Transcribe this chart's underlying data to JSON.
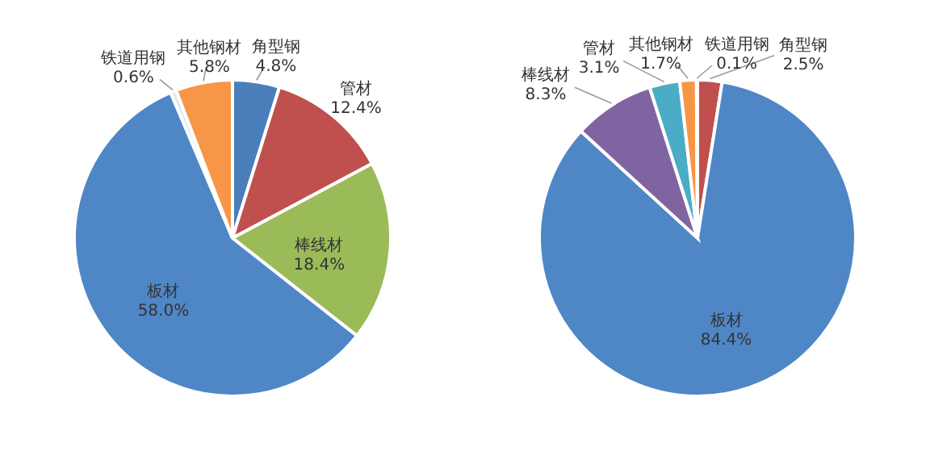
{
  "chart_data": [
    {
      "type": "pie",
      "categories": [
        "角型钢",
        "管材",
        "棒线材",
        "板材",
        "铁道用钢",
        "其他钢材"
      ],
      "values": [
        4.8,
        12.4,
        18.4,
        58.0,
        0.6,
        5.8
      ],
      "value_labels": [
        "4.8%",
        "12.4%",
        "18.4%",
        "58.0%",
        "0.6%",
        "5.8%"
      ],
      "colors": [
        "#4a7ebb",
        "#c0504d",
        "#9bbb59",
        "#4f86c6",
        "#dfe6f0",
        "#f79646"
      ],
      "legend": false
    },
    {
      "type": "pie",
      "categories": [
        "角型钢",
        "板材",
        "棒线材",
        "管材",
        "其他钢材",
        "铁道用钢"
      ],
      "values": [
        2.5,
        84.4,
        8.3,
        3.1,
        1.7,
        0.1
      ],
      "value_labels": [
        "2.5%",
        "84.4%",
        "8.3%",
        "3.1%",
        "1.7%",
        "0.1%"
      ],
      "colors": [
        "#c0504d",
        "#4f86c6",
        "#8064a2",
        "#4bacc6",
        "#f79646",
        "#9bbb59"
      ],
      "legend": false
    }
  ]
}
